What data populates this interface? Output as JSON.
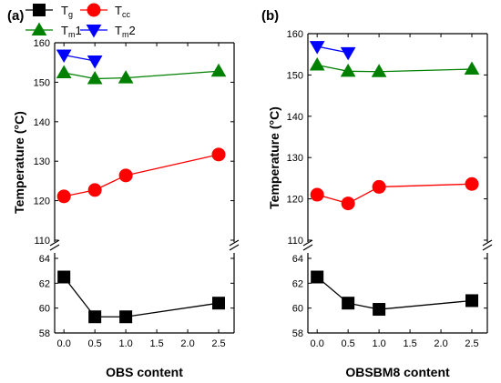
{
  "chart_data": [
    {
      "type": "line",
      "panel_label": "(a)",
      "xlabel": "OBS content",
      "ylabel": "Temperature (°C)",
      "xlim": [
        -0.15,
        2.75
      ],
      "x_ticks": [
        "0.0",
        "0.5",
        "1.0",
        "1.5",
        "2.0",
        "2.5"
      ],
      "upper_ylim": [
        110,
        160
      ],
      "upper_y_ticks": [
        "110",
        "120",
        "130",
        "140",
        "150",
        "160"
      ],
      "lower_ylim": [
        58,
        65
      ],
      "lower_y_ticks": [
        "58",
        "60",
        "62",
        "64"
      ],
      "broken_axis": true,
      "series": [
        {
          "name": "T",
          "sub": "g",
          "marker": "square",
          "color": "#000000",
          "segment": "lower",
          "x": [
            0.0,
            0.5,
            1.0,
            2.5
          ],
          "values": [
            62.5,
            59.3,
            59.3,
            60.4
          ]
        },
        {
          "name": "T",
          "sub": "cc",
          "marker": "circle",
          "color": "#ff0000",
          "segment": "upper",
          "x": [
            0.0,
            0.5,
            1.0,
            2.5
          ],
          "values": [
            121.1,
            122.7,
            126.4,
            131.7
          ]
        },
        {
          "name": "T",
          "sub": "m",
          "suffix": "1",
          "marker": "triangle-up",
          "color": "#008000",
          "segment": "upper",
          "x": [
            0.0,
            0.5,
            1.0,
            2.5
          ],
          "values": [
            152.4,
            150.9,
            151.1,
            152.8
          ]
        },
        {
          "name": "T",
          "sub": "m",
          "suffix": "2",
          "marker": "triangle-down",
          "color": "#0000ff",
          "segment": "upper",
          "x": [
            0.0,
            0.5
          ],
          "values": [
            156.9,
            155.4
          ]
        }
      ]
    },
    {
      "type": "line",
      "panel_label": "(b)",
      "xlabel": "OBSBM8 content",
      "ylabel": "Temperature (°C)",
      "xlim": [
        -0.15,
        2.75
      ],
      "x_ticks": [
        "0.0",
        "0.5",
        "1.0",
        "1.5",
        "2.0",
        "2.5"
      ],
      "upper_ylim": [
        110,
        160
      ],
      "upper_y_ticks": [
        "110",
        "120",
        "130",
        "140",
        "150",
        "160"
      ],
      "lower_ylim": [
        58,
        65
      ],
      "lower_y_ticks": [
        "58",
        "60",
        "62",
        "64"
      ],
      "broken_axis": true,
      "series": [
        {
          "name": "T",
          "sub": "g",
          "marker": "square",
          "color": "#000000",
          "segment": "lower",
          "x": [
            0.0,
            0.5,
            1.0,
            2.5
          ],
          "values": [
            62.5,
            60.4,
            59.9,
            60.6
          ]
        },
        {
          "name": "T",
          "sub": "cc",
          "marker": "circle",
          "color": "#ff0000",
          "segment": "upper",
          "x": [
            0.0,
            0.5,
            1.0,
            2.5
          ],
          "values": [
            121.0,
            118.9,
            122.9,
            123.6
          ]
        },
        {
          "name": "T",
          "sub": "m",
          "suffix": "1",
          "marker": "triangle-up",
          "color": "#008000",
          "segment": "upper",
          "x": [
            0.0,
            0.5,
            1.0,
            2.5
          ],
          "values": [
            152.4,
            150.9,
            150.8,
            151.4
          ]
        },
        {
          "name": "T",
          "sub": "m",
          "suffix": "2",
          "marker": "triangle-down",
          "color": "#0000ff",
          "segment": "upper",
          "x": [
            0.0,
            0.5
          ],
          "values": [
            156.9,
            155.4
          ]
        }
      ]
    }
  ]
}
